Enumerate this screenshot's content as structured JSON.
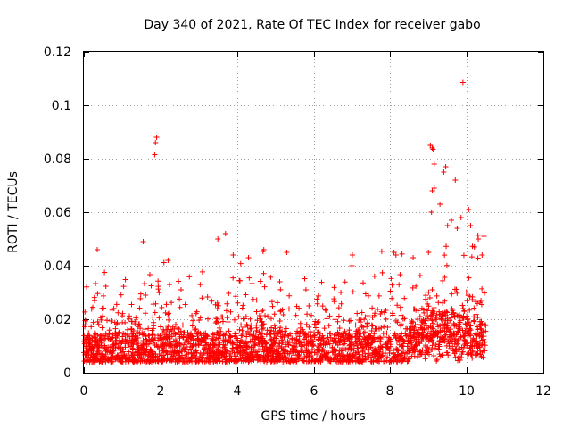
{
  "chart_data": {
    "type": "scatter",
    "title": "Day 340 of 2021, Rate Of TEC Index for receiver gabo",
    "xlabel": "GPS time / hours",
    "ylabel": "ROTI / TECUs",
    "xlim": [
      0,
      12
    ],
    "ylim": [
      0,
      0.12
    ],
    "grid": true,
    "x_ticks": [
      0,
      2,
      4,
      6,
      8,
      10,
      12
    ],
    "y_ticks": [
      0,
      0.02,
      0.04,
      0.06,
      0.08,
      0.1,
      0.12
    ],
    "x_tick_labels": [
      "0",
      "2",
      "4",
      "6",
      "8",
      "10",
      "12"
    ],
    "y_tick_labels": [
      "0",
      "0.02",
      "0.04",
      "0.06",
      "0.08",
      "0.1",
      "0.12"
    ],
    "marker": "+",
    "marker_color": "#ff0000",
    "data_x_range": [
      0,
      10.5
    ],
    "series": [
      {
        "name": "ROTI",
        "points": [
          [
            1.85,
            0.0815
          ],
          [
            1.87,
            0.086
          ],
          [
            1.9,
            0.088
          ],
          [
            9.05,
            0.085
          ],
          [
            9.1,
            0.084
          ],
          [
            9.12,
            0.0835
          ],
          [
            9.15,
            0.078
          ],
          [
            9.4,
            0.075
          ],
          [
            9.45,
            0.077
          ],
          [
            9.7,
            0.072
          ],
          [
            9.9,
            0.1085
          ],
          [
            9.1,
            0.068
          ],
          [
            9.15,
            0.069
          ],
          [
            9.08,
            0.06
          ],
          [
            9.3,
            0.063
          ],
          [
            9.5,
            0.055
          ],
          [
            9.6,
            0.057
          ],
          [
            9.75,
            0.054
          ],
          [
            9.85,
            0.058
          ],
          [
            10.05,
            0.061
          ],
          [
            10.1,
            0.055
          ],
          [
            10.3,
            0.05
          ],
          [
            10.45,
            0.051
          ],
          [
            8.1,
            0.045
          ],
          [
            8.15,
            0.044
          ],
          [
            3.5,
            0.05
          ],
          [
            3.7,
            0.052
          ],
          [
            1.55,
            0.049
          ],
          [
            0.35,
            0.046
          ],
          [
            4.7,
            0.046
          ],
          [
            2.2,
            0.042
          ],
          [
            3.9,
            0.044
          ],
          [
            4.3,
            0.043
          ],
          [
            5.3,
            0.045
          ],
          [
            7.0,
            0.04
          ],
          [
            8.6,
            0.043
          ],
          [
            9.0,
            0.045
          ],
          [
            10.2,
            0.047
          ],
          [
            10.4,
            0.044
          ]
        ]
      }
    ]
  }
}
